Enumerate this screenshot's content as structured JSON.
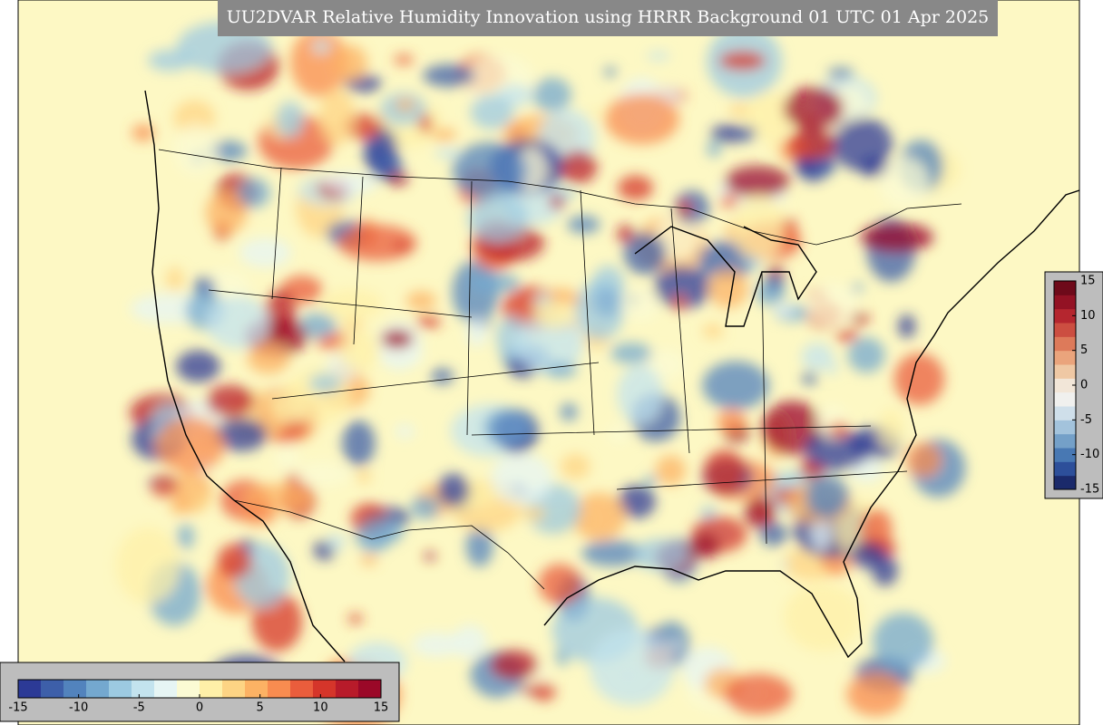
{
  "title": "UU2DVAR Relative Humidity Innovation using HRRR Background 01 UTC 01 Apr 2025",
  "colorbars": [
    {
      "orientation": "horizontal",
      "lim": [
        -15,
        15
      ],
      "ticks": [
        -15,
        -10,
        -5,
        0,
        5,
        10,
        15
      ],
      "colors": [
        "#2c3a96",
        "#3d5fa9",
        "#5283bd",
        "#74a8cf",
        "#9ccae1",
        "#c3e3ee",
        "#e6f5f4",
        "#fbfbd4",
        "#fef0a8",
        "#fdd484",
        "#fcb264",
        "#f88c50",
        "#ea5d3c",
        "#d5352a",
        "#b81b2a",
        "#9b0828"
      ]
    },
    {
      "orientation": "vertical",
      "lim": [
        -15,
        15
      ],
      "ticks": [
        15,
        10,
        5,
        0,
        -5,
        -10,
        -15
      ],
      "colors": [
        "#1b2a6b",
        "#2d4f9a",
        "#4878b3",
        "#74a0c8",
        "#a3c3dc",
        "#cfdfea",
        "#f0f0ee",
        "#f2e6d8",
        "#efc8a4",
        "#eaa47c",
        "#dd7a5a",
        "#cc4e41",
        "#b5262f",
        "#931224",
        "#6e0a1a"
      ]
    }
  ]
}
